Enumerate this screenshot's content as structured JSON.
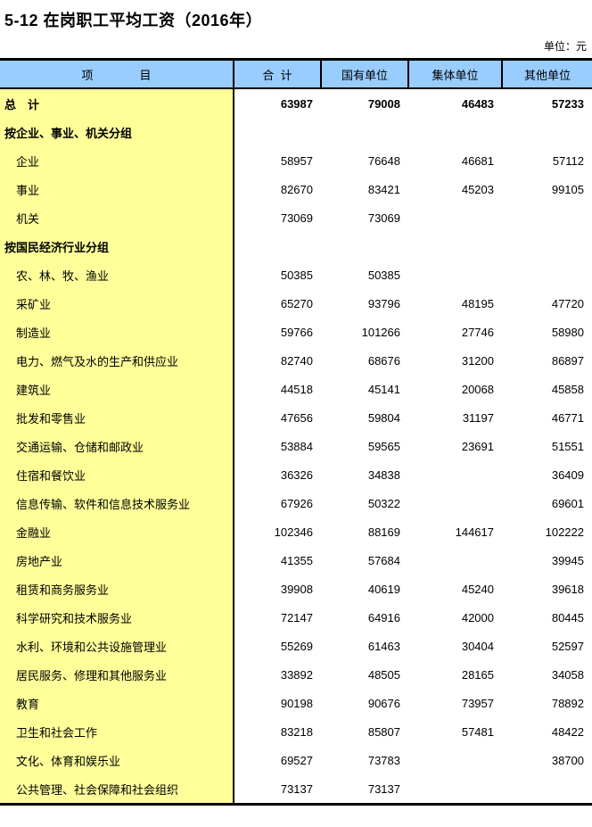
{
  "page": {
    "title": "5-12 在岗职工平均工资（2016年）",
    "unit_label": "单位：元"
  },
  "colors": {
    "header_bg": "#99CCFF",
    "label_bg": "#FFFF99",
    "border": "#000000"
  },
  "table": {
    "columns": [
      {
        "label": "项　　　　目"
      },
      {
        "label": "合  计"
      },
      {
        "label": "国有单位"
      },
      {
        "label": "集体单位"
      },
      {
        "label": "其他单位"
      }
    ],
    "rows": [
      {
        "label": "总　计",
        "type": "total",
        "values": [
          "63987",
          "79008",
          "46483",
          "57233"
        ]
      },
      {
        "label": "按企业、事业、机关分组",
        "type": "group",
        "values": [
          "",
          "",
          "",
          ""
        ]
      },
      {
        "label": "企业",
        "type": "item",
        "values": [
          "58957",
          "76648",
          "46681",
          "57112"
        ]
      },
      {
        "label": "事业",
        "type": "item",
        "values": [
          "82670",
          "83421",
          "45203",
          "99105"
        ]
      },
      {
        "label": "机关",
        "type": "item",
        "values": [
          "73069",
          "73069",
          "",
          ""
        ]
      },
      {
        "label": "按国民经济行业分组",
        "type": "group",
        "values": [
          "",
          "",
          "",
          ""
        ]
      },
      {
        "label": "农、林、牧、渔业",
        "type": "item",
        "values": [
          "50385",
          "50385",
          "",
          ""
        ]
      },
      {
        "label": "采矿业",
        "type": "item",
        "values": [
          "65270",
          "93796",
          "48195",
          "47720"
        ]
      },
      {
        "label": "制造业",
        "type": "item",
        "values": [
          "59766",
          "101266",
          "27746",
          "58980"
        ]
      },
      {
        "label": "电力、燃气及水的生产和供应业",
        "type": "item",
        "values": [
          "82740",
          "68676",
          "31200",
          "86897"
        ]
      },
      {
        "label": "建筑业",
        "type": "item",
        "values": [
          "44518",
          "45141",
          "20068",
          "45858"
        ]
      },
      {
        "label": "批发和零售业",
        "type": "item",
        "values": [
          "47656",
          "59804",
          "31197",
          "46771"
        ]
      },
      {
        "label": "交通运输、仓储和邮政业",
        "type": "item",
        "values": [
          "53884",
          "59565",
          "23691",
          "51551"
        ]
      },
      {
        "label": "住宿和餐饮业",
        "type": "item",
        "values": [
          "36326",
          "34838",
          "",
          "36409"
        ]
      },
      {
        "label": "信息传输、软件和信息技术服务业",
        "type": "item",
        "values": [
          "67926",
          "50322",
          "",
          "69601"
        ]
      },
      {
        "label": "金融业",
        "type": "item",
        "values": [
          "102346",
          "88169",
          "144617",
          "102222"
        ]
      },
      {
        "label": "房地产业",
        "type": "item",
        "values": [
          "41355",
          "57684",
          "",
          "39945"
        ]
      },
      {
        "label": "租赁和商务服务业",
        "type": "item",
        "values": [
          "39908",
          "40619",
          "45240",
          "39618"
        ]
      },
      {
        "label": "科学研究和技术服务业",
        "type": "item",
        "values": [
          "72147",
          "64916",
          "42000",
          "80445"
        ]
      },
      {
        "label": "水利、环境和公共设施管理业",
        "type": "item",
        "values": [
          "55269",
          "61463",
          "30404",
          "52597"
        ]
      },
      {
        "label": "居民服务、修理和其他服务业",
        "type": "item",
        "values": [
          "33892",
          "48505",
          "28165",
          "34058"
        ]
      },
      {
        "label": "教育",
        "type": "item",
        "values": [
          "90198",
          "90676",
          "73957",
          "78892"
        ]
      },
      {
        "label": "卫生和社会工作",
        "type": "item",
        "values": [
          "83218",
          "85807",
          "57481",
          "48422"
        ]
      },
      {
        "label": "文化、体育和娱乐业",
        "type": "item",
        "values": [
          "69527",
          "73783",
          "",
          "38700"
        ]
      },
      {
        "label": "公共管理、社会保障和社会组织",
        "type": "item",
        "values": [
          "73137",
          "73137",
          "",
          ""
        ]
      }
    ]
  }
}
